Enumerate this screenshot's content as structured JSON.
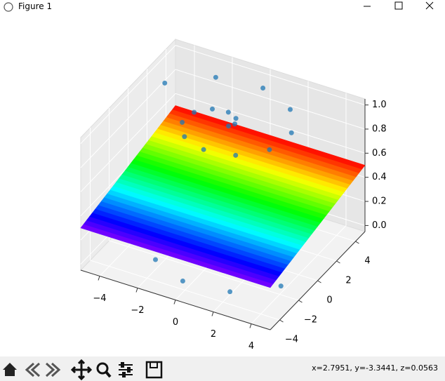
{
  "window": {
    "title": "Figure 1"
  },
  "status": "x=2.7951, y=-3.3441, z=0.0563",
  "chart_data": {
    "type": "scatter3d",
    "xlim": [
      -5,
      5
    ],
    "ylim": [
      -5,
      5
    ],
    "zlim": [
      -0.05,
      1.05
    ],
    "xticks": [
      {
        "value": -4,
        "label": "−4"
      },
      {
        "value": -2,
        "label": "−2"
      },
      0,
      2,
      4
    ],
    "yticks": [
      {
        "value": -4,
        "label": "−4"
      },
      {
        "value": -2,
        "label": "−2"
      },
      0,
      2,
      4
    ],
    "zticks": [
      {
        "value": 0,
        "label": "0.0"
      },
      {
        "value": 0.2,
        "label": "0.2"
      },
      {
        "value": 0.4,
        "label": "0.4"
      },
      {
        "value": 0.6,
        "label": "0.6"
      },
      {
        "value": 0.8,
        "label": "0.8"
      },
      {
        "value": 1,
        "label": "1.0"
      }
    ],
    "grid": true,
    "series": [
      {
        "color": "#1f77b4",
        "x": [
          0.3,
          0.47,
          0.3,
          -0.25,
          -1.02,
          -1.63,
          -1.72,
          -1.07,
          0.21,
          1.73,
          2.88,
          3.11,
          2.15,
          0.21,
          -2.12,
          -3.96
        ],
        "y": [
          0,
          0.32,
          0.78,
          1.08,
          0.93,
          0.23,
          -0.85,
          -1.91,
          -2.45,
          -2.11,
          -0.84,
          1.02,
          2.81,
          3.81,
          3.49,
          1.79
        ],
        "z": [
          1,
          1,
          1,
          1,
          1,
          1,
          1,
          1,
          1,
          1,
          1,
          1,
          1,
          1,
          1,
          1
        ]
      },
      {
        "color": "#1f77b4",
        "x": [
          -0.3,
          -0.47,
          -0.3,
          0.25,
          1.02,
          1.63,
          1.72,
          1.07,
          -0.21,
          -1.73,
          -2.88,
          -3.11,
          -2.15,
          -0.21,
          2.12,
          3.96
        ],
        "y": [
          0,
          -0.32,
          -0.78,
          -1.08,
          -0.93,
          -0.23,
          0.85,
          1.91,
          2.45,
          2.11,
          0.84,
          -1.02,
          -2.81,
          -3.81,
          -3.49,
          -1.79
        ],
        "z": [
          0,
          0,
          0,
          0,
          0,
          0,
          0,
          0,
          0,
          0,
          0,
          0,
          0,
          0,
          0,
          0
        ]
      }
    ],
    "surface": {
      "colormap": "rainbow",
      "x": [
        -5,
        -2.5,
        0,
        2.5,
        5
      ],
      "y": [
        -5,
        -2.5,
        0,
        2.5,
        5
      ],
      "z": [
        [
          0.3,
          0.35,
          0.4,
          0.45,
          0.5
        ],
        [
          0.3,
          0.35,
          0.4,
          0.45,
          0.5
        ],
        [
          0.3,
          0.35,
          0.4,
          0.45,
          0.5
        ],
        [
          0.3,
          0.35,
          0.4,
          0.45,
          0.5
        ],
        [
          0.3,
          0.35,
          0.4,
          0.45,
          0.5
        ]
      ]
    }
  }
}
